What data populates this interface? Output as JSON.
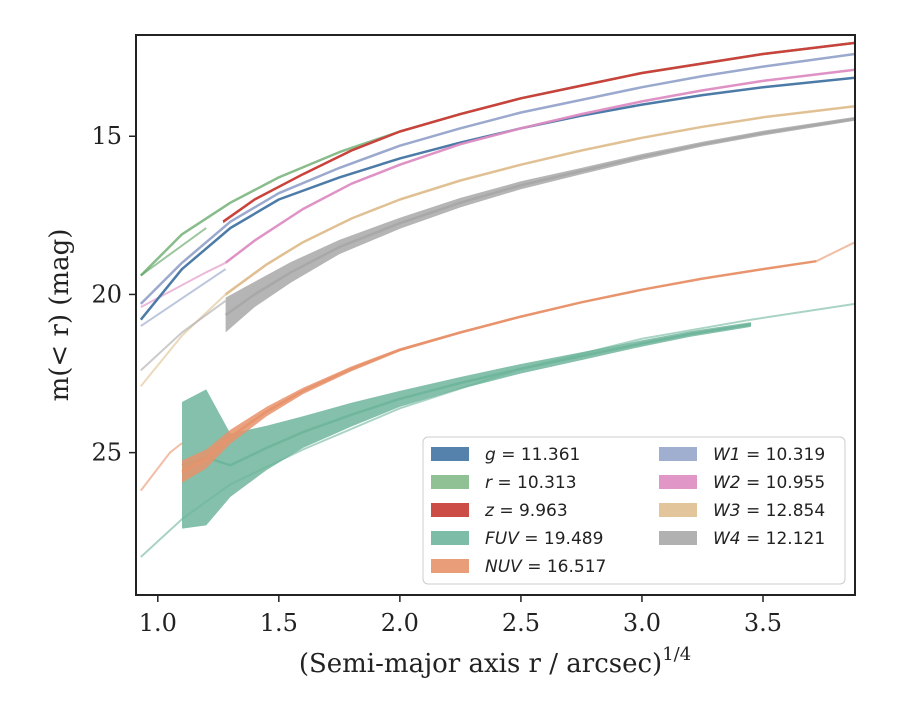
{
  "chart_data": {
    "type": "line",
    "xlabel": "(Semi-major axis r / arcsec)",
    "xlabel_sup": "1/4",
    "ylabel": "m(< r) (mag)",
    "xlim": [
      0.91,
      3.88
    ],
    "ylim": [
      29.5,
      11.8
    ],
    "y_inverted": true,
    "x_ticks": [
      1.0,
      1.5,
      2.0,
      2.5,
      3.0,
      3.5
    ],
    "x_tick_labels": [
      "1.0",
      "1.5",
      "2.0",
      "2.5",
      "3.0",
      "3.5"
    ],
    "y_ticks": [
      15,
      20,
      25
    ],
    "y_tick_labels": [
      "15",
      "20",
      "25"
    ],
    "grid": false,
    "legend_position": "lower-right",
    "legend_columns": 2,
    "series": [
      {
        "name": "g = 11.361",
        "label_var": "g",
        "label_val": "11.361",
        "color": "#4c7ba8",
        "opacity": 0.9,
        "stroke": 2.5,
        "x": [
          0.93,
          1.1,
          1.3,
          1.5,
          1.75,
          2.0,
          2.25,
          2.5,
          2.75,
          3.0,
          3.25,
          3.5,
          3.88
        ],
        "y": [
          20.8,
          19.2,
          17.9,
          17.0,
          16.3,
          15.7,
          15.2,
          14.75,
          14.35,
          14.0,
          13.7,
          13.45,
          13.15
        ],
        "band": [
          0,
          0,
          0,
          0,
          0,
          0,
          0,
          0,
          0,
          0,
          0,
          0,
          0
        ]
      },
      {
        "name": "r = 10.313",
        "label_var": "r",
        "label_val": "10.313",
        "color": "#55a05a",
        "opacity": 0.6,
        "stroke": 2.5,
        "x": [
          0.93,
          1.1,
          1.3,
          1.5,
          1.75,
          2.0,
          2.25,
          2.5,
          2.75,
          3.0,
          3.25,
          3.5,
          3.88
        ],
        "y": [
          19.4,
          18.1,
          17.1,
          16.3,
          15.5,
          14.85,
          14.3,
          13.8,
          13.4,
          13.0,
          12.7,
          12.4,
          12.05
        ],
        "band": [
          0,
          0,
          0,
          0,
          0,
          0,
          0,
          0,
          0,
          0,
          0,
          0,
          0
        ]
      },
      {
        "name": "z = 9.963",
        "label_var": "z",
        "label_val": "9.963",
        "color": "#c9423c",
        "opacity": 0.9,
        "stroke": 2.5,
        "x": [
          1.27,
          1.4,
          1.6,
          1.8,
          2.0,
          2.25,
          2.5,
          2.75,
          3.0,
          3.25,
          3.5,
          3.88
        ],
        "y": [
          17.7,
          17.0,
          16.2,
          15.45,
          14.85,
          14.3,
          13.8,
          13.4,
          13.0,
          12.7,
          12.4,
          12.05
        ],
        "band": [
          0.1,
          0.05,
          0.03,
          0,
          0,
          0,
          0,
          0,
          0,
          0,
          0,
          0
        ]
      },
      {
        "name": "FUV = 19.489",
        "label_var": "FUV",
        "label_val": "19.489",
        "color": "#6fb59c",
        "opacity": 0.85,
        "stroke": 2.5,
        "x": [
          1.1,
          1.2,
          1.3,
          1.45,
          1.6,
          1.8,
          2.0,
          2.25,
          2.5,
          2.75,
          3.0,
          3.2,
          3.45
        ],
        "y": [
          25.4,
          25.15,
          25.4,
          24.85,
          24.35,
          23.8,
          23.3,
          22.8,
          22.35,
          21.95,
          21.55,
          21.25,
          20.95
        ],
        "band": [
          4.0,
          4.3,
          2.0,
          1.4,
          1.0,
          0.75,
          0.5,
          0.38,
          0.3,
          0.25,
          0.2,
          0.17,
          0.15
        ]
      },
      {
        "name": "NUV = 16.517",
        "label_var": "NUV",
        "label_val": "16.517",
        "color": "#e8926a",
        "opacity": 0.85,
        "stroke": 2.5,
        "x": [
          1.1,
          1.2,
          1.3,
          1.45,
          1.6,
          1.8,
          2.0,
          2.25,
          2.5,
          2.75,
          3.0,
          3.25,
          3.5,
          3.72
        ],
        "y": [
          25.6,
          25.2,
          24.5,
          23.7,
          23.05,
          22.35,
          21.75,
          21.2,
          20.7,
          20.25,
          19.85,
          19.5,
          19.2,
          18.95
        ],
        "band": [
          0.7,
          0.6,
          0.45,
          0.3,
          0.2,
          0.15,
          0.1,
          0.08,
          0.07,
          0.05,
          0.05,
          0.04,
          0.04,
          0.03
        ]
      },
      {
        "name": "W1 = 10.319",
        "label_var": "W1",
        "label_val": "10.319",
        "color": "#8fa0c8",
        "opacity": 0.8,
        "stroke": 2.5,
        "x": [
          0.93,
          1.1,
          1.3,
          1.5,
          1.75,
          2.0,
          2.25,
          2.5,
          2.75,
          3.0,
          3.25,
          3.5,
          3.88
        ],
        "y": [
          20.3,
          19.0,
          17.7,
          16.8,
          16.0,
          15.3,
          14.75,
          14.25,
          13.85,
          13.45,
          13.1,
          12.8,
          12.4
        ],
        "band": [
          0,
          0,
          0,
          0,
          0,
          0,
          0,
          0,
          0,
          0,
          0,
          0,
          0
        ]
      },
      {
        "name": "W2 = 10.955",
        "label_var": "W2",
        "label_val": "10.955",
        "color": "#dd8cc2",
        "opacity": 0.85,
        "stroke": 2.5,
        "x": [
          1.28,
          1.4,
          1.6,
          1.8,
          2.0,
          2.25,
          2.5,
          2.75,
          3.0,
          3.25,
          3.5,
          3.88
        ],
        "y": [
          19.0,
          18.3,
          17.3,
          16.5,
          15.9,
          15.25,
          14.75,
          14.3,
          13.9,
          13.55,
          13.25,
          12.9
        ],
        "band": [
          0.05,
          0.04,
          0.03,
          0,
          0,
          0,
          0,
          0,
          0,
          0,
          0,
          0
        ]
      },
      {
        "name": "W3 = 12.854",
        "label_var": "W3",
        "label_val": "12.854",
        "color": "#dfbf90",
        "opacity": 0.85,
        "stroke": 2.5,
        "x": [
          1.28,
          1.45,
          1.6,
          1.8,
          2.0,
          2.25,
          2.5,
          2.75,
          3.0,
          3.25,
          3.5,
          3.88
        ],
        "y": [
          20.0,
          19.05,
          18.35,
          17.6,
          17.0,
          16.4,
          15.9,
          15.45,
          15.05,
          14.7,
          14.4,
          14.05
        ],
        "band": [
          0.1,
          0.08,
          0.06,
          0.05,
          0.04,
          0.03,
          0.03,
          0.02,
          0.02,
          0.02,
          0.02,
          0.02
        ]
      },
      {
        "name": "W4 = 12.121",
        "label_var": "W4",
        "label_val": "12.121",
        "color": "#a8a8a8",
        "opacity": 0.85,
        "stroke": 2.5,
        "x": [
          1.28,
          1.4,
          1.55,
          1.75,
          2.0,
          2.25,
          2.5,
          2.75,
          3.0,
          3.25,
          3.5,
          3.88
        ],
        "y": [
          20.65,
          20.0,
          19.3,
          18.5,
          17.75,
          17.1,
          16.55,
          16.1,
          15.65,
          15.25,
          14.9,
          14.45
        ],
        "band": [
          1.1,
          0.8,
          0.65,
          0.45,
          0.35,
          0.3,
          0.25,
          0.2,
          0.18,
          0.15,
          0.15,
          0.12
        ]
      }
    ],
    "extensions": [
      {
        "series": 1,
        "x": [
          0.93,
          1.2
        ],
        "y": [
          19.4,
          17.9
        ]
      },
      {
        "series": 5,
        "x": [
          0.93,
          1.28
        ],
        "y": [
          21.0,
          19.2
        ]
      },
      {
        "series": 6,
        "x": [
          0.93,
          1.2,
          1.28
        ],
        "y": [
          20.4,
          19.3,
          19.0
        ]
      },
      {
        "series": 7,
        "x": [
          0.93,
          1.1,
          1.28
        ],
        "y": [
          22.9,
          21.3,
          20.0
        ]
      },
      {
        "series": 8,
        "x": [
          0.93,
          1.1,
          1.28
        ],
        "y": [
          22.4,
          21.2,
          20.2
        ]
      },
      {
        "series": 4,
        "x": [
          0.93,
          1.05,
          1.1
        ],
        "y": [
          26.2,
          25.0,
          24.7
        ]
      },
      {
        "series": 3,
        "x": [
          0.93,
          1.1,
          1.3,
          1.6,
          2.0,
          2.5,
          3.0,
          3.45,
          3.88
        ],
        "y": [
          28.3,
          27.1,
          26.0,
          24.9,
          23.6,
          22.35,
          21.4,
          20.8,
          20.3
        ]
      },
      {
        "series": 4,
        "x": [
          3.72,
          3.88
        ],
        "y": [
          18.95,
          18.35
        ]
      }
    ]
  }
}
